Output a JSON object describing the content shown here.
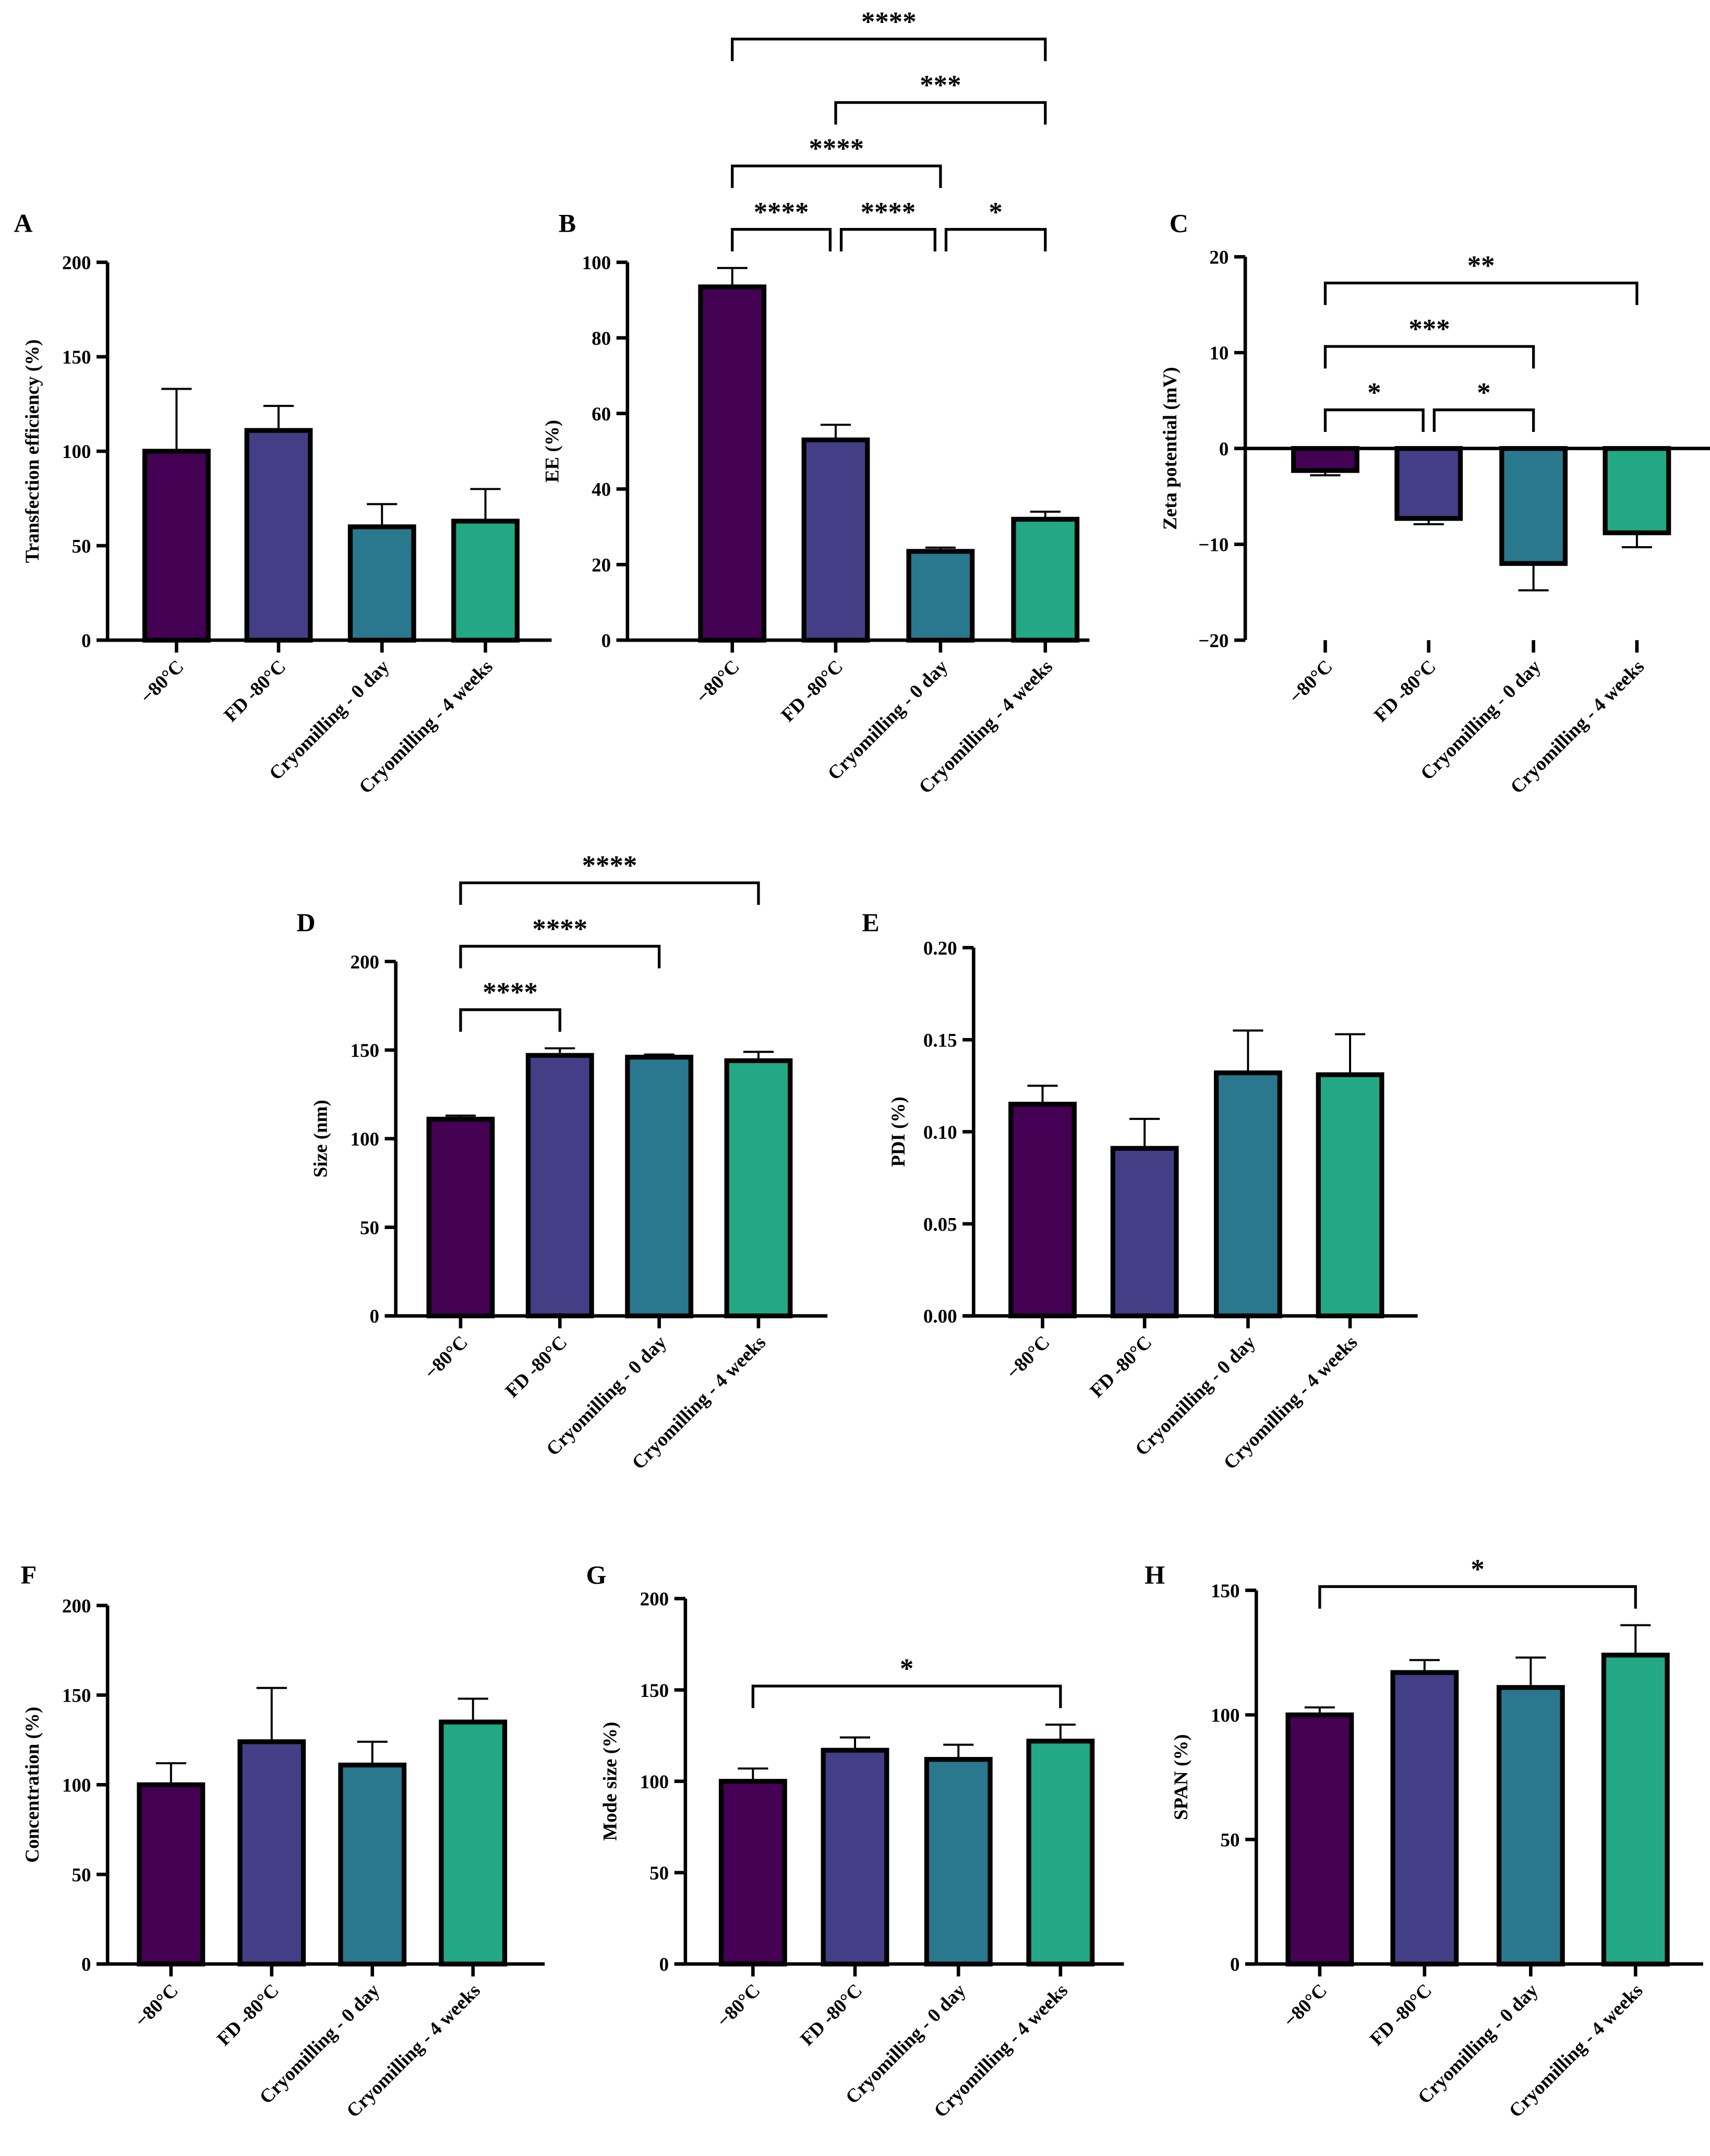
{
  "colors": [
    "#440154",
    "#433E85",
    "#2A788E",
    "#22A884"
  ],
  "chart_data": [
    {
      "panel": "A",
      "type": "bar",
      "ylabel": "Transfection efficiency (%)",
      "ylim": [
        0,
        200
      ],
      "ticks": [
        0,
        50,
        100,
        150,
        200
      ],
      "tick_labels": [
        "0",
        "50",
        "100",
        "150",
        "200"
      ],
      "categories": [
        "−80°C",
        "FD -80°C",
        "Cryomilling - 0 day",
        "Cryomilling - 4 weeks"
      ],
      "values": [
        100,
        111,
        60,
        63
      ],
      "errors": [
        33,
        13,
        12,
        17
      ],
      "significance": []
    },
    {
      "panel": "B",
      "type": "bar",
      "ylabel": "EE (%)",
      "ylim": [
        0,
        100
      ],
      "ticks": [
        0,
        20,
        40,
        60,
        80,
        100
      ],
      "tick_labels": [
        "0",
        "20",
        "40",
        "60",
        "80",
        "100"
      ],
      "categories": [
        "−80°C",
        "FD -80°C",
        "Cryomilling - 0 day",
        "Cryomilling - 4 weeks"
      ],
      "values": [
        93.5,
        53,
        23.5,
        32
      ],
      "errors": [
        5,
        4,
        1,
        2
      ],
      "significance": [
        {
          "pair": [
            0,
            1
          ],
          "label": "****"
        },
        {
          "pair": [
            1,
            2
          ],
          "label": "****"
        },
        {
          "pair": [
            2,
            3
          ],
          "label": "*"
        },
        {
          "pair": [
            0,
            2
          ],
          "label": "****"
        },
        {
          "pair": [
            1,
            3
          ],
          "label": "***"
        },
        {
          "pair": [
            0,
            3
          ],
          "label": "****"
        }
      ]
    },
    {
      "panel": "C",
      "type": "bar",
      "ylabel": "Zeta potential (mV)",
      "ylim": [
        -20,
        20
      ],
      "ticks": [
        -20,
        -10,
        0,
        10,
        20
      ],
      "tick_labels": [
        "−20",
        "−10",
        "0",
        "10",
        "20"
      ],
      "categories": [
        "−80°C",
        "FD -80°C",
        "Cryomilling - 0 day",
        "Cryomilling - 4 weeks"
      ],
      "values": [
        -2.3,
        -7.3,
        -12,
        -8.8
      ],
      "errors": [
        0.5,
        0.6,
        2.8,
        1.5
      ],
      "significance": [
        {
          "pair": [
            0,
            1
          ],
          "label": "*"
        },
        {
          "pair": [
            1,
            2
          ],
          "label": "*"
        },
        {
          "pair": [
            0,
            2
          ],
          "label": "***"
        },
        {
          "pair": [
            0,
            3
          ],
          "label": "**"
        }
      ]
    },
    {
      "panel": "D",
      "type": "bar",
      "ylabel": "Size (nm)",
      "ylim": [
        0,
        200
      ],
      "ticks": [
        0,
        50,
        100,
        150,
        200
      ],
      "tick_labels": [
        "0",
        "50",
        "100",
        "150",
        "200"
      ],
      "categories": [
        "−80°C",
        "FD -80°C",
        "Cryomilling - 0 day",
        "Cryomilling - 4 weeks"
      ],
      "values": [
        111,
        147,
        146,
        144
      ],
      "errors": [
        2,
        4,
        1.5,
        5
      ],
      "significance": [
        {
          "pair": [
            0,
            1
          ],
          "label": "****"
        },
        {
          "pair": [
            0,
            2
          ],
          "label": "****"
        },
        {
          "pair": [
            0,
            3
          ],
          "label": "****"
        }
      ]
    },
    {
      "panel": "E",
      "type": "bar",
      "ylabel": "PDI (%)",
      "ylim": [
        0,
        0.2
      ],
      "ticks": [
        0,
        0.05,
        0.1,
        0.15,
        0.2
      ],
      "tick_labels": [
        "0.00",
        "0.05",
        "0.10",
        "0.15",
        "0.20"
      ],
      "categories": [
        "−80°C",
        "FD -80°C",
        "Cryomilling - 0 day",
        "Cryomilling - 4 weeks"
      ],
      "values": [
        0.115,
        0.091,
        0.132,
        0.131
      ],
      "errors": [
        0.01,
        0.016,
        0.023,
        0.022
      ],
      "significance": []
    },
    {
      "panel": "F",
      "type": "bar",
      "ylabel": "Concentration (%)",
      "ylim": [
        0,
        200
      ],
      "ticks": [
        0,
        50,
        100,
        150,
        200
      ],
      "tick_labels": [
        "0",
        "50",
        "100",
        "150",
        "200"
      ],
      "categories": [
        "−80°C",
        "FD -80°C",
        "Cryomilling - 0 day",
        "Cryomilling - 4 weeks"
      ],
      "values": [
        100,
        124,
        111,
        135
      ],
      "errors": [
        12,
        30,
        13,
        13
      ],
      "significance": []
    },
    {
      "panel": "G",
      "type": "bar",
      "ylabel": "Mode size (%)",
      "ylim": [
        0,
        200
      ],
      "ticks": [
        0,
        50,
        100,
        150,
        200
      ],
      "tick_labels": [
        "0",
        "50",
        "100",
        "150",
        "200"
      ],
      "categories": [
        "−80°C",
        "FD -80°C",
        "Cryomilling - 0 day",
        "Cryomilling - 4 weeks"
      ],
      "values": [
        100,
        117,
        112,
        122
      ],
      "errors": [
        7,
        7,
        8,
        9
      ],
      "significance": [
        {
          "pair": [
            0,
            3
          ],
          "label": "*"
        }
      ]
    },
    {
      "panel": "H",
      "type": "bar",
      "ylabel": "SPAN (%)",
      "ylim": [
        0,
        150
      ],
      "ticks": [
        0,
        50,
        100,
        150
      ],
      "tick_labels": [
        "0",
        "50",
        "100",
        "150"
      ],
      "categories": [
        "−80°C",
        "FD -80°C",
        "Cryomilling - 0 day",
        "Cryomilling - 4 weeks"
      ],
      "values": [
        100,
        117,
        111,
        124
      ],
      "errors": [
        3,
        5,
        12,
        12
      ],
      "significance": [
        {
          "pair": [
            0,
            3
          ],
          "label": "*"
        }
      ]
    }
  ]
}
